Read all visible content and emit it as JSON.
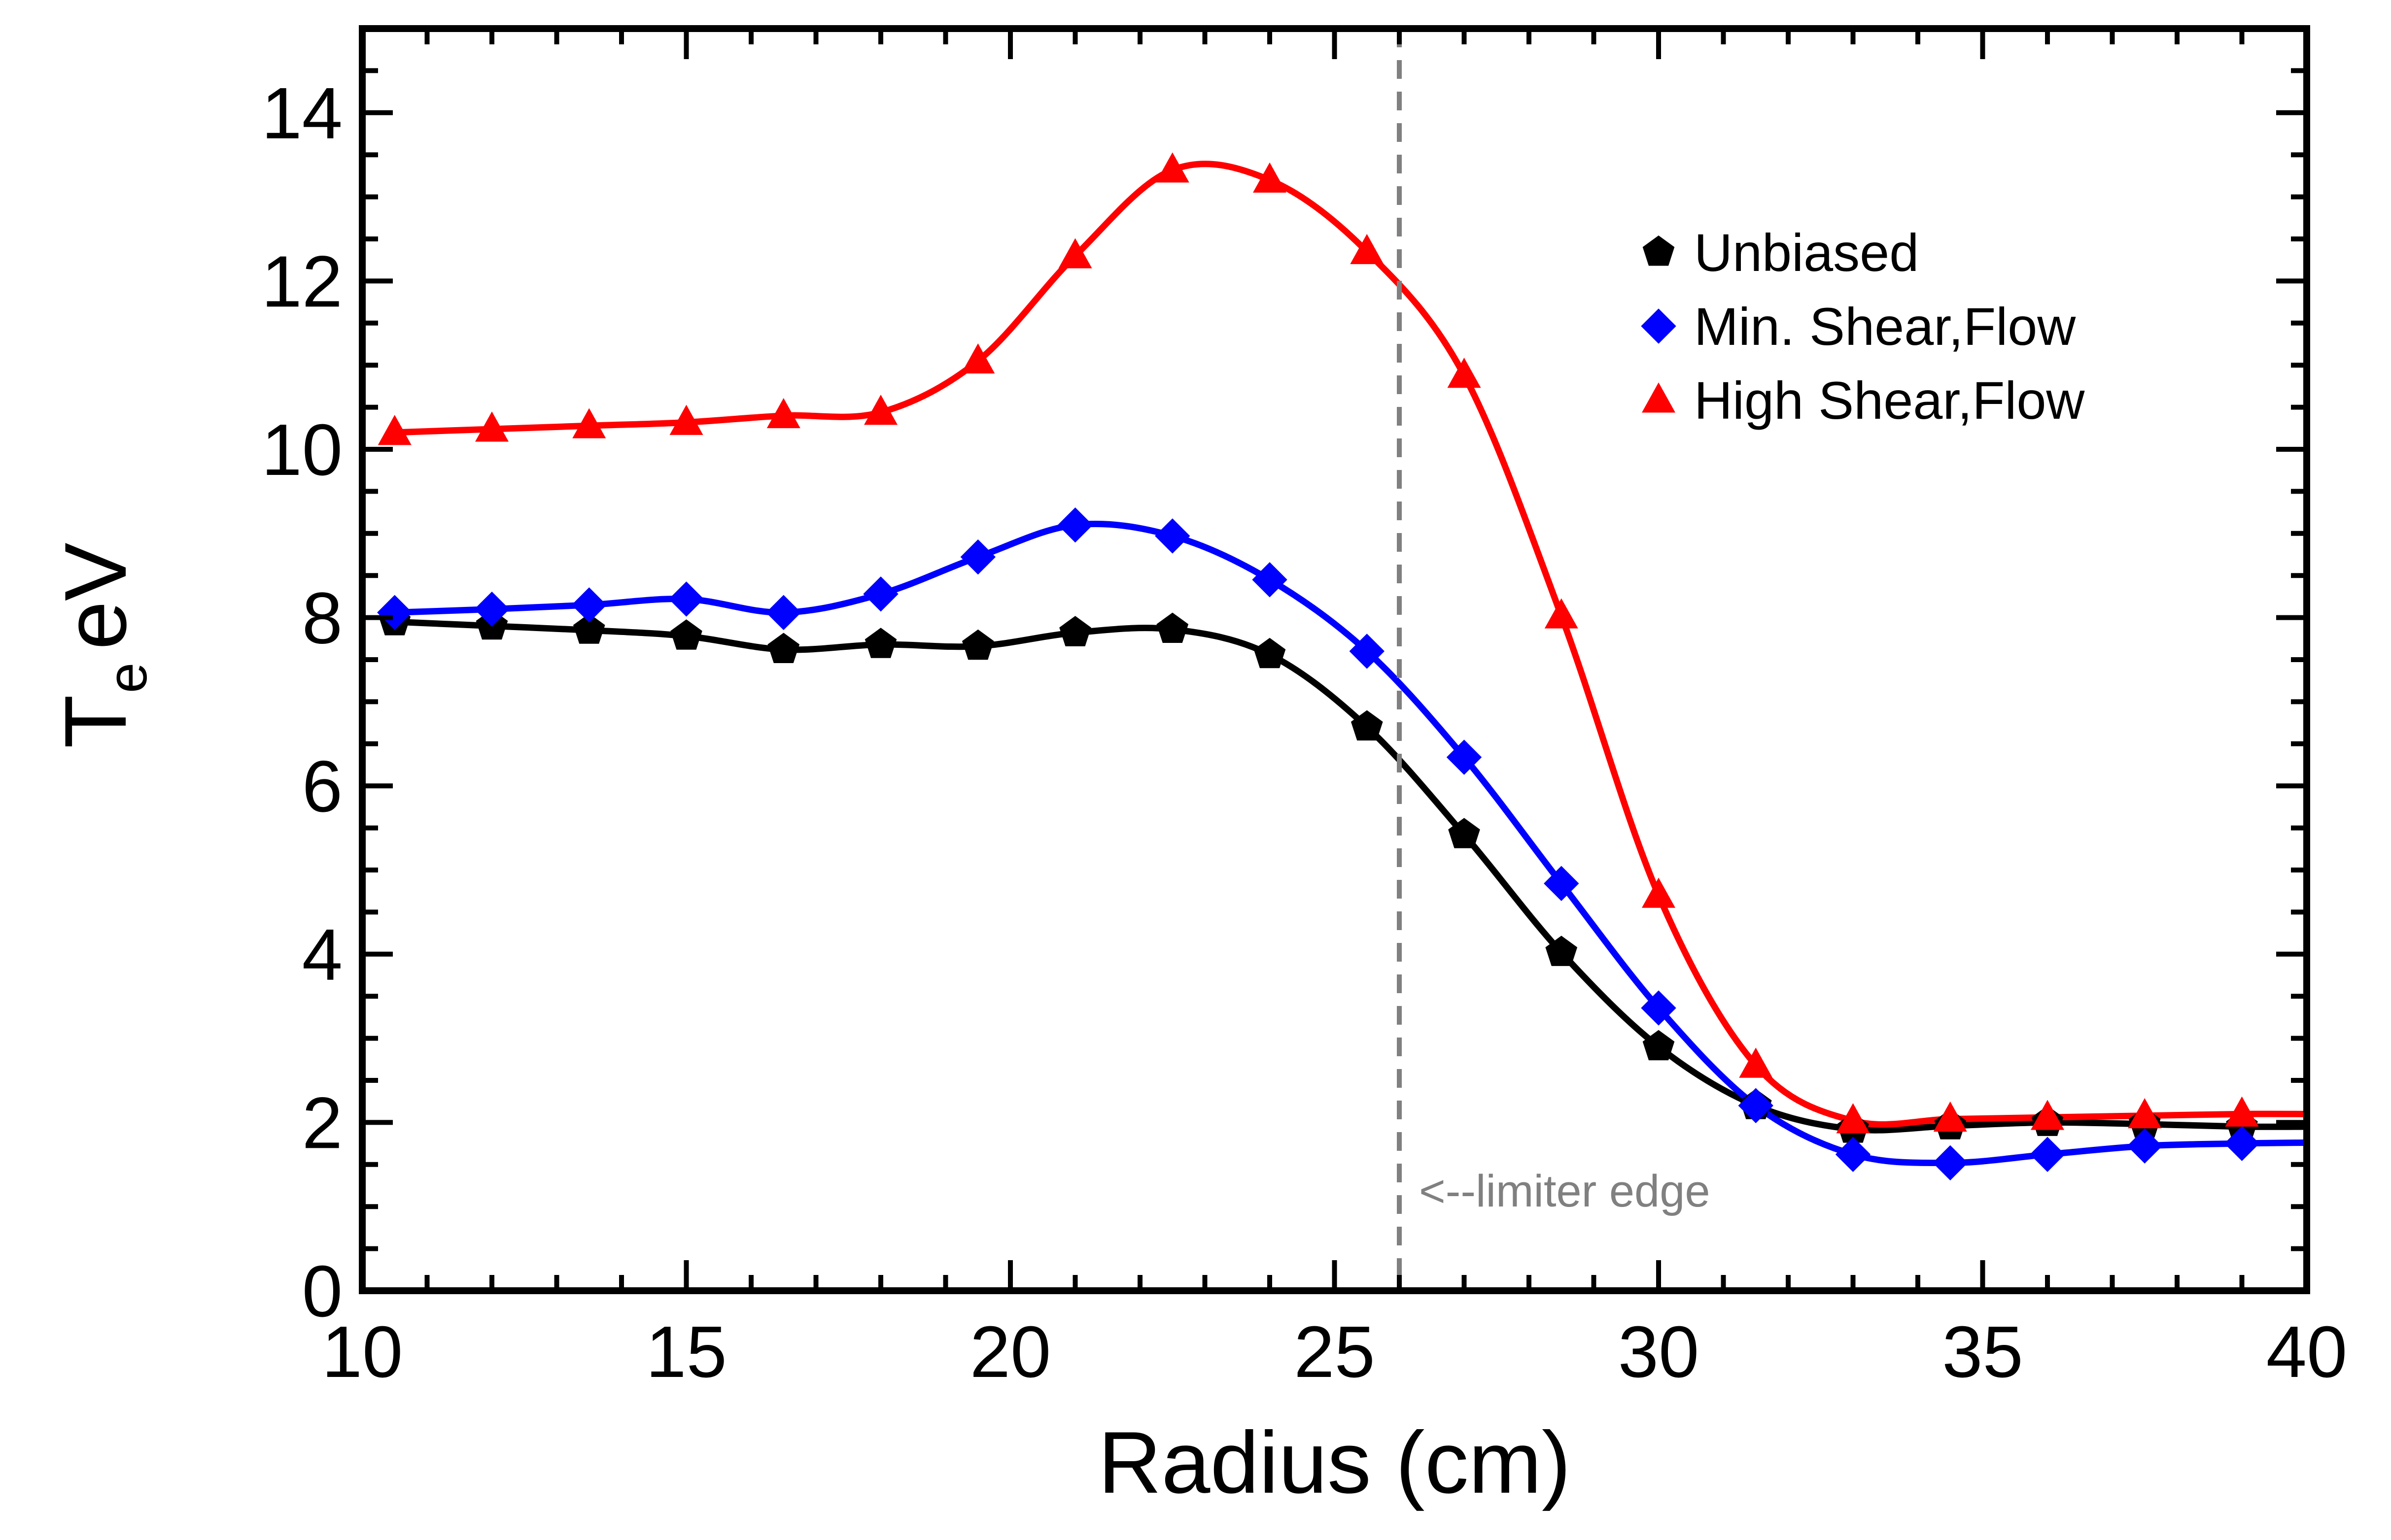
{
  "chart_data": {
    "type": "line",
    "xlabel": "Radius (cm)",
    "ylabel_main": "T",
    "ylabel_sub": "e",
    "ylabel_unit": "eV",
    "xlim": [
      10,
      40
    ],
    "ylim": [
      0,
      15
    ],
    "x_ticks": [
      10,
      15,
      20,
      25,
      30,
      35,
      40
    ],
    "x_tick_labels": [
      "10",
      "15",
      "20",
      "25",
      "30",
      "35",
      "40"
    ],
    "y_ticks": [
      0,
      2,
      4,
      6,
      8,
      10,
      12,
      14
    ],
    "y_tick_labels": [
      "0",
      "2",
      "4",
      "6",
      "8",
      "10",
      "12",
      "14"
    ],
    "x_minor_step": 1,
    "y_minor_step": 0.5,
    "grid": false,
    "legend_position": "top-right",
    "vline": {
      "x": 26,
      "color": "#808080",
      "label": "<--limiter edge"
    },
    "x": [
      10.5,
      12,
      13.5,
      15,
      16.5,
      18,
      19.5,
      21,
      22.5,
      24,
      25.5,
      27,
      28.5,
      30,
      31.5,
      33,
      34.5,
      36,
      37.5,
      39,
      40
    ],
    "series": [
      {
        "name": "Unbiased",
        "color": "#000000",
        "marker": "pentagon",
        "values": [
          7.95,
          7.9,
          7.85,
          7.78,
          7.62,
          7.68,
          7.66,
          7.82,
          7.86,
          7.56,
          6.7,
          5.42,
          4.02,
          2.9,
          2.2,
          1.92,
          1.96,
          2.0,
          1.98,
          1.95,
          1.95
        ]
      },
      {
        "name": "Min. Shear,Flow",
        "color": "#0000ff",
        "marker": "diamond",
        "values": [
          8.06,
          8.1,
          8.15,
          8.22,
          8.06,
          8.28,
          8.72,
          9.1,
          8.97,
          8.45,
          7.6,
          6.34,
          4.84,
          3.36,
          2.2,
          1.62,
          1.52,
          1.62,
          1.72,
          1.75,
          1.76
        ]
      },
      {
        "name": "High Shear,Flow",
        "color": "#ff0000",
        "marker": "triangle",
        "values": [
          10.2,
          10.24,
          10.28,
          10.32,
          10.4,
          10.44,
          11.05,
          12.3,
          13.32,
          13.2,
          12.35,
          10.88,
          8.02,
          4.7,
          2.68,
          2.02,
          2.04,
          2.06,
          2.08,
          2.1,
          2.1
        ]
      }
    ]
  }
}
